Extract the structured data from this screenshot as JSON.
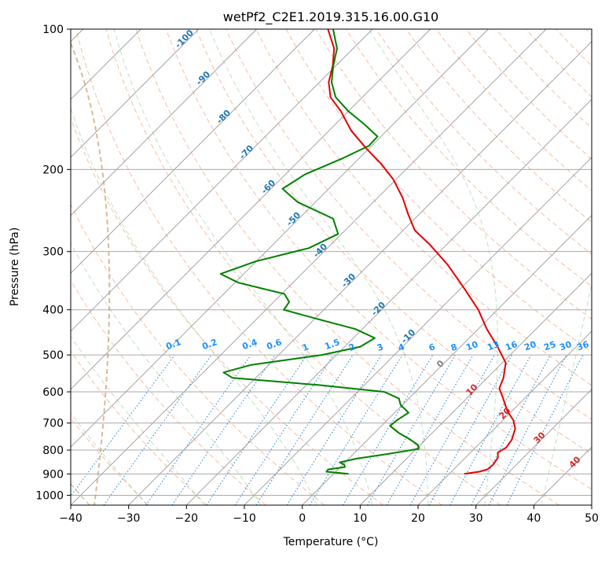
{
  "chart_data": {
    "type": "line",
    "subtype": "skew-T log-P thermodynamic diagram",
    "title": "wetPf2_C2E1.2019.315.16.00.G10",
    "xlabel": "Temperature (°C)",
    "ylabel": "Pressure (hPa)",
    "xlim": [
      -40,
      50
    ],
    "ylim": [
      1050,
      100
    ],
    "yscale": "log",
    "x_ticks": [
      -40,
      -30,
      -20,
      -10,
      0,
      10,
      20,
      30,
      40,
      50
    ],
    "x_tick_labels": [
      "−40",
      "−30",
      "−20",
      "−10",
      "0",
      "10",
      "20",
      "30",
      "40",
      "50"
    ],
    "y_ticks": [
      100,
      200,
      300,
      400,
      500,
      600,
      700,
      800,
      900,
      1000
    ],
    "y_tick_labels": [
      "100",
      "200",
      "300",
      "400",
      "500",
      "600",
      "700",
      "800",
      "900",
      "1000"
    ],
    "grid": true,
    "series": [
      {
        "role": "temperature",
        "color": "#e60000",
        "points": [
          {
            "p": 900,
            "t": 22.6
          },
          {
            "p": 890,
            "t": 24.8
          },
          {
            "p": 880,
            "t": 25.8
          },
          {
            "p": 860,
            "t": 26.0
          },
          {
            "p": 830,
            "t": 25.6
          },
          {
            "p": 810,
            "t": 24.7
          },
          {
            "p": 790,
            "t": 25.3
          },
          {
            "p": 760,
            "t": 24.9
          },
          {
            "p": 720,
            "t": 23.6
          },
          {
            "p": 690,
            "t": 21.8
          },
          {
            "p": 660,
            "t": 19.2
          },
          {
            "p": 620,
            "t": 16.3
          },
          {
            "p": 590,
            "t": 13.9
          },
          {
            "p": 560,
            "t": 12.8
          },
          {
            "p": 520,
            "t": 10.6
          },
          {
            "p": 480,
            "t": 6.4
          },
          {
            "p": 440,
            "t": 1.5
          },
          {
            "p": 400,
            "t": -3.3
          },
          {
            "p": 360,
            "t": -9.4
          },
          {
            "p": 320,
            "t": -16.4
          },
          {
            "p": 290,
            "t": -22.9
          },
          {
            "p": 270,
            "t": -28.0
          },
          {
            "p": 250,
            "t": -31.8
          },
          {
            "p": 230,
            "t": -35.7
          },
          {
            "p": 210,
            "t": -40.5
          },
          {
            "p": 195,
            "t": -45.1
          },
          {
            "p": 180,
            "t": -50.6
          },
          {
            "p": 165,
            "t": -56.2
          },
          {
            "p": 150,
            "t": -61.3
          },
          {
            "p": 140,
            "t": -65.5
          },
          {
            "p": 130,
            "t": -68.4
          },
          {
            "p": 120,
            "t": -70.5
          },
          {
            "p": 110,
            "t": -73.3
          },
          {
            "p": 100,
            "t": -77.7
          }
        ]
      },
      {
        "role": "dewpoint",
        "color": "#008000",
        "points": [
          {
            "p": 900,
            "t": 2.6
          },
          {
            "p": 890,
            "t": -1.6
          },
          {
            "p": 880,
            "t": -1.7
          },
          {
            "p": 870,
            "t": 0.8
          },
          {
            "p": 860,
            "t": 0.3
          },
          {
            "p": 850,
            "t": -0.9
          },
          {
            "p": 835,
            "t": 1.3
          },
          {
            "p": 815,
            "t": 6.1
          },
          {
            "p": 795,
            "t": 10.4
          },
          {
            "p": 780,
            "t": 9.6
          },
          {
            "p": 760,
            "t": 7.4
          },
          {
            "p": 735,
            "t": 4.2
          },
          {
            "p": 710,
            "t": 1.5
          },
          {
            "p": 690,
            "t": 1.7
          },
          {
            "p": 665,
            "t": 2.4
          },
          {
            "p": 640,
            "t": -0.3
          },
          {
            "p": 620,
            "t": -1.7
          },
          {
            "p": 600,
            "t": -5.4
          },
          {
            "p": 580,
            "t": -18.0
          },
          {
            "p": 560,
            "t": -34.0
          },
          {
            "p": 545,
            "t": -36.5
          },
          {
            "p": 525,
            "t": -33.0
          },
          {
            "p": 500,
            "t": -22.5
          },
          {
            "p": 480,
            "t": -17.3
          },
          {
            "p": 460,
            "t": -16.3
          },
          {
            "p": 440,
            "t": -21.2
          },
          {
            "p": 420,
            "t": -29.0
          },
          {
            "p": 400,
            "t": -36.9
          },
          {
            "p": 385,
            "t": -37.3
          },
          {
            "p": 370,
            "t": -39.5
          },
          {
            "p": 350,
            "t": -49.4
          },
          {
            "p": 335,
            "t": -54.0
          },
          {
            "p": 315,
            "t": -50.1
          },
          {
            "p": 295,
            "t": -43.2
          },
          {
            "p": 275,
            "t": -40.6
          },
          {
            "p": 255,
            "t": -44.1
          },
          {
            "p": 235,
            "t": -53.1
          },
          {
            "p": 220,
            "t": -58.0
          },
          {
            "p": 205,
            "t": -56.6
          },
          {
            "p": 190,
            "t": -53.0
          },
          {
            "p": 178,
            "t": -50.5
          },
          {
            "p": 170,
            "t": -50.6
          },
          {
            "p": 160,
            "t": -55.0
          },
          {
            "p": 150,
            "t": -60.0
          },
          {
            "p": 140,
            "t": -64.6
          },
          {
            "p": 130,
            "t": -67.9
          },
          {
            "p": 120,
            "t": -70.4
          },
          {
            "p": 110,
            "t": -72.8
          },
          {
            "p": 100,
            "t": -76.8
          }
        ]
      }
    ],
    "dry_adiabat_labels": [
      "-100",
      "-90",
      "-80",
      "-70",
      "-60",
      "-50",
      "-40",
      "-30",
      "-20",
      "-10"
    ],
    "mixing_ratio_labels": [
      "0.1",
      "0.2",
      "0.4",
      "0.6",
      "1",
      "1.5",
      "2",
      "3",
      "4",
      "6",
      "8",
      "10",
      "13",
      "16",
      "20",
      "25",
      "30",
      "36"
    ],
    "moist_adiabat_labels": [
      "0",
      "10",
      "20",
      "30",
      "40"
    ]
  }
}
